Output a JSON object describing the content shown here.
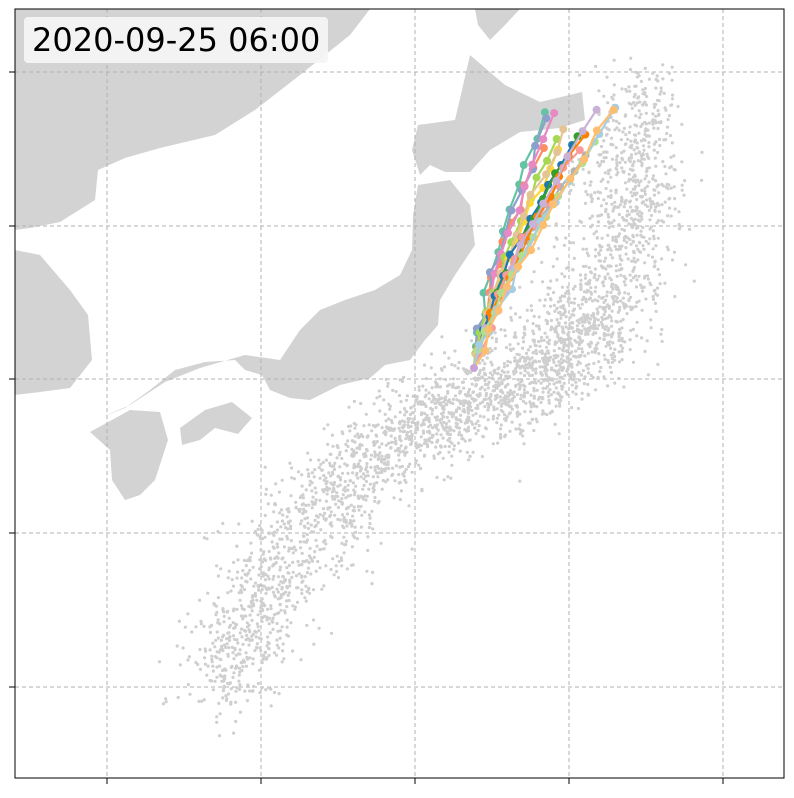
{
  "timestamp": "2020-09-25 06:00",
  "map": {
    "type": "map",
    "land_color": "#d3d3d3",
    "ocean_color": "#ffffff",
    "grid": true,
    "grid_color": "#b0b0b0",
    "scatter_color": "#d3d3d3",
    "tick_labels_visible": false,
    "features": [
      "Japan",
      "Korean Peninsula",
      "Sakhalin"
    ]
  },
  "ensemble_tracks": {
    "count": 16,
    "colors": [
      "#66c2a5",
      "#fc8d62",
      "#8da0cb",
      "#e78ac3",
      "#a6d854",
      "#ffd92f",
      "#e5c494",
      "#b3b3b3",
      "#1f78b4",
      "#33a02c",
      "#fb9a99",
      "#ff7f00",
      "#cab2d6",
      "#b2df8a",
      "#a6cee3",
      "#fdbf6f"
    ],
    "motion": "north-northeast"
  }
}
